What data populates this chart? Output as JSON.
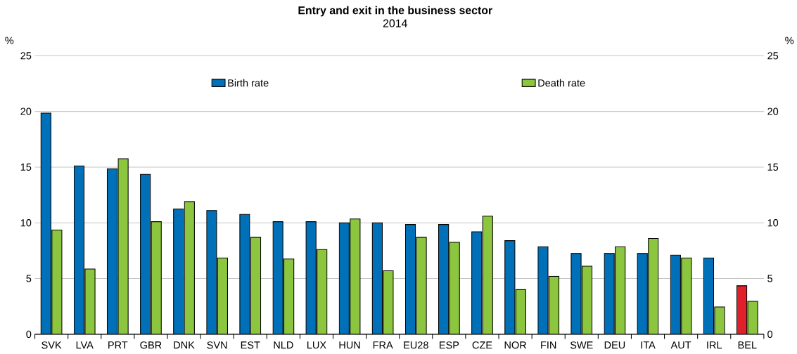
{
  "chart_data": {
    "type": "bar",
    "title": "Entry and exit in the business sector",
    "subtitle": "2014",
    "ylabel": "%",
    "y2label": "%",
    "categories": [
      "SVK",
      "LVA",
      "PRT",
      "GBR",
      "DNK",
      "SVN",
      "EST",
      "NLD",
      "LUX",
      "HUN",
      "FRA",
      "EU28",
      "ESP",
      "CZE",
      "NOR",
      "FIN",
      "SWE",
      "DEU",
      "ITA",
      "AUT",
      "IRL",
      "BEL"
    ],
    "series": [
      {
        "name": "Birth rate",
        "color": "#0070b8",
        "colors": [
          "#0070b8",
          "#0070b8",
          "#0070b8",
          "#0070b8",
          "#0070b8",
          "#0070b8",
          "#0070b8",
          "#0070b8",
          "#0070b8",
          "#0070b8",
          "#0070b8",
          "#0070b8",
          "#0070b8",
          "#0070b8",
          "#0070b8",
          "#0070b8",
          "#0070b8",
          "#0070b8",
          "#0070b8",
          "#0070b8",
          "#0070b8",
          "#e0202a"
        ],
        "values": [
          19.85,
          15.1,
          14.85,
          14.35,
          11.25,
          11.1,
          10.75,
          10.1,
          10.1,
          10.0,
          10.0,
          9.85,
          9.85,
          9.2,
          8.4,
          7.85,
          7.25,
          7.25,
          7.25,
          7.1,
          6.85,
          4.35
        ]
      },
      {
        "name": "Death rate",
        "color": "#8cc63f",
        "values": [
          9.35,
          5.85,
          15.75,
          10.1,
          11.9,
          6.85,
          8.7,
          6.75,
          7.6,
          10.35,
          5.7,
          8.7,
          8.25,
          10.6,
          4.0,
          5.2,
          6.1,
          7.85,
          8.6,
          6.85,
          2.45,
          2.95
        ]
      }
    ],
    "ylim": [
      0,
      25
    ],
    "yticks": [
      0,
      5,
      10,
      15,
      20,
      25
    ],
    "y2lim": [
      0,
      25
    ],
    "y2ticks": [
      0,
      5,
      10,
      15,
      20,
      25
    ],
    "grid": "y",
    "legend": "top"
  }
}
